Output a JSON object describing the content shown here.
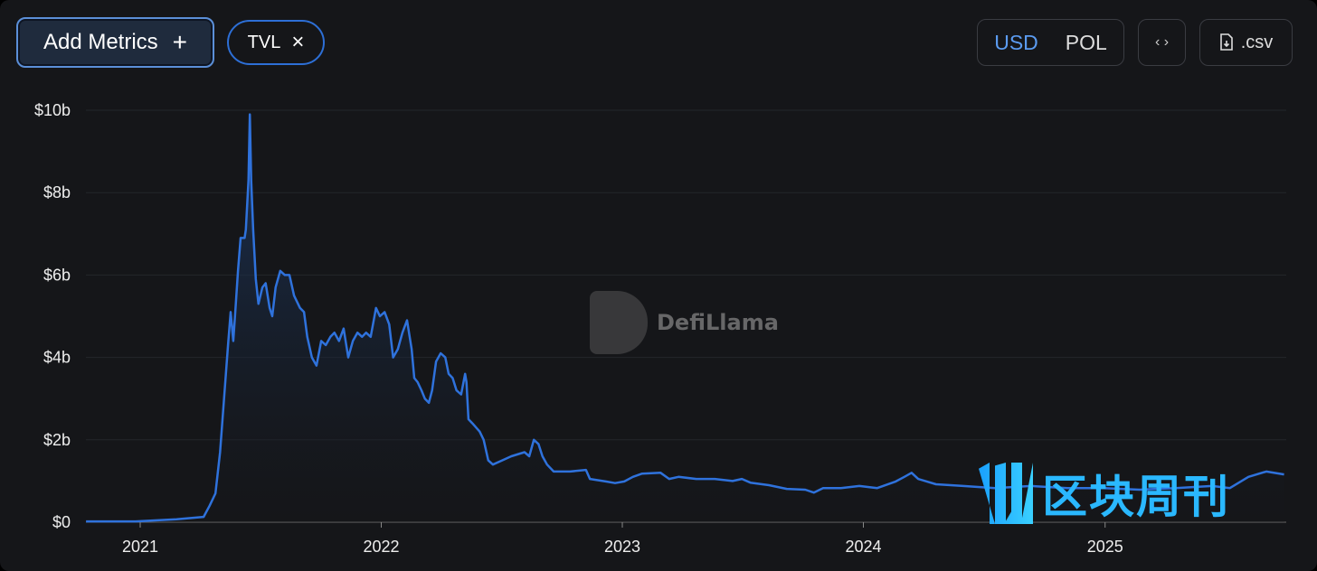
{
  "toolbar": {
    "add_metrics": "Add Metrics",
    "add_icon": "+",
    "tvl_chip": "TVL",
    "close_icon": "×",
    "currency": [
      "USD",
      "POL"
    ],
    "currency_selected": "USD",
    "embed_icon": "‹ ›",
    "csv_label": ".csv"
  },
  "watermarks": {
    "defillama": "DefiLlama",
    "overlay": "区块周刊"
  },
  "colors": {
    "line": "#2f72dc",
    "accent": "#5b9bf0",
    "background": "#151619"
  },
  "chart_data": {
    "type": "area",
    "title": "",
    "xlabel": "",
    "ylabel": "",
    "ylim": [
      0,
      10
    ],
    "y_ticks": [
      "$0",
      "$2b",
      "$4b",
      "$6b",
      "$8b",
      "$10b"
    ],
    "x_ticks": [
      "2021",
      "2022",
      "2023",
      "2024",
      "2025"
    ],
    "grid": "horizontal",
    "series": [
      {
        "unit": "USD billions",
        "points": [
          [
            "2020-10-11",
            0.02
          ],
          [
            "2020-12-25",
            0.02
          ],
          [
            "2021-02-25",
            0.07
          ],
          [
            "2021-04-07",
            0.13
          ],
          [
            "2021-04-16",
            0.4
          ],
          [
            "2021-04-25",
            0.7
          ],
          [
            "2021-05-02",
            1.7
          ],
          [
            "2021-05-08",
            3.0
          ],
          [
            "2021-05-14",
            4.3
          ],
          [
            "2021-05-18",
            5.1
          ],
          [
            "2021-05-22",
            4.4
          ],
          [
            "2021-05-25",
            5.1
          ],
          [
            "2021-05-29",
            6.1
          ],
          [
            "2021-06-02",
            6.9
          ],
          [
            "2021-06-08",
            6.9
          ],
          [
            "2021-06-10",
            7.1
          ],
          [
            "2021-06-14",
            8.3
          ],
          [
            "2021-06-16",
            9.9
          ],
          [
            "2021-06-18",
            8.3
          ],
          [
            "2021-06-21",
            7.1
          ],
          [
            "2021-06-25",
            5.9
          ],
          [
            "2021-06-29",
            5.3
          ],
          [
            "2021-07-05",
            5.7
          ],
          [
            "2021-07-10",
            5.8
          ],
          [
            "2021-07-16",
            5.2
          ],
          [
            "2021-07-20",
            5.0
          ],
          [
            "2021-07-25",
            5.7
          ],
          [
            "2021-08-01",
            6.1
          ],
          [
            "2021-08-08",
            6.0
          ],
          [
            "2021-08-15",
            6.0
          ],
          [
            "2021-08-22",
            5.5
          ],
          [
            "2021-08-31",
            5.2
          ],
          [
            "2021-09-06",
            5.1
          ],
          [
            "2021-09-11",
            4.5
          ],
          [
            "2021-09-18",
            4.0
          ],
          [
            "2021-09-25",
            3.8
          ],
          [
            "2021-10-02",
            4.4
          ],
          [
            "2021-10-09",
            4.3
          ],
          [
            "2021-10-16",
            4.5
          ],
          [
            "2021-10-22",
            4.6
          ],
          [
            "2021-10-29",
            4.4
          ],
          [
            "2021-11-05",
            4.7
          ],
          [
            "2021-11-12",
            4.0
          ],
          [
            "2021-11-19",
            4.4
          ],
          [
            "2021-11-26",
            4.6
          ],
          [
            "2021-12-03",
            4.5
          ],
          [
            "2021-12-09",
            4.6
          ],
          [
            "2021-12-16",
            4.5
          ],
          [
            "2021-12-24",
            5.2
          ],
          [
            "2021-12-30",
            5.0
          ],
          [
            "2022-01-06",
            5.1
          ],
          [
            "2022-01-13",
            4.8
          ],
          [
            "2022-01-19",
            4.0
          ],
          [
            "2022-01-26",
            4.2
          ],
          [
            "2022-02-02",
            4.6
          ],
          [
            "2022-02-09",
            4.9
          ],
          [
            "2022-02-16",
            4.2
          ],
          [
            "2022-02-20",
            3.5
          ],
          [
            "2022-02-25",
            3.4
          ],
          [
            "2022-03-03",
            3.2
          ],
          [
            "2022-03-08",
            3.0
          ],
          [
            "2022-03-14",
            2.9
          ],
          [
            "2022-03-19",
            3.2
          ],
          [
            "2022-03-25",
            3.9
          ],
          [
            "2022-04-01",
            4.1
          ],
          [
            "2022-04-08",
            4.0
          ],
          [
            "2022-04-13",
            3.6
          ],
          [
            "2022-04-19",
            3.5
          ],
          [
            "2022-04-25",
            3.2
          ],
          [
            "2022-05-02",
            3.1
          ],
          [
            "2022-05-08",
            3.6
          ],
          [
            "2022-05-10",
            3.4
          ],
          [
            "2022-05-13",
            2.5
          ],
          [
            "2022-05-19",
            2.4
          ],
          [
            "2022-05-30",
            2.2
          ],
          [
            "2022-06-05",
            2.0
          ],
          [
            "2022-06-12",
            1.5
          ],
          [
            "2022-06-19",
            1.4
          ],
          [
            "2022-07-03",
            1.5
          ],
          [
            "2022-07-17",
            1.6
          ],
          [
            "2022-08-06",
            1.7
          ],
          [
            "2022-08-13",
            1.6
          ],
          [
            "2022-08-20",
            2.0
          ],
          [
            "2022-08-27",
            1.9
          ],
          [
            "2022-09-02",
            1.6
          ],
          [
            "2022-09-09",
            1.4
          ],
          [
            "2022-09-19",
            1.23
          ],
          [
            "2022-10-14",
            1.23
          ],
          [
            "2022-11-07",
            1.27
          ],
          [
            "2022-11-13",
            1.05
          ],
          [
            "2022-12-07",
            0.99
          ],
          [
            "2022-12-21",
            0.95
          ],
          [
            "2023-01-04",
            0.99
          ],
          [
            "2023-01-17",
            1.1
          ],
          [
            "2023-01-31",
            1.18
          ],
          [
            "2023-02-28",
            1.2
          ],
          [
            "2023-03-13",
            1.05
          ],
          [
            "2023-03-27",
            1.1
          ],
          [
            "2023-04-23",
            1.05
          ],
          [
            "2023-05-21",
            1.05
          ],
          [
            "2023-06-17",
            1.0
          ],
          [
            "2023-07-01",
            1.05
          ],
          [
            "2023-07-14",
            0.96
          ],
          [
            "2023-08-11",
            0.9
          ],
          [
            "2023-09-07",
            0.81
          ],
          [
            "2023-10-05",
            0.79
          ],
          [
            "2023-10-18",
            0.72
          ],
          [
            "2023-11-01",
            0.83
          ],
          [
            "2023-11-28",
            0.83
          ],
          [
            "2023-12-26",
            0.88
          ],
          [
            "2024-01-22",
            0.83
          ],
          [
            "2024-02-19",
            0.99
          ],
          [
            "2024-03-03",
            1.1
          ],
          [
            "2024-03-14",
            1.2
          ],
          [
            "2024-03-24",
            1.05
          ],
          [
            "2024-04-20",
            0.92
          ],
          [
            "2024-05-31",
            0.88
          ],
          [
            "2024-07-18",
            0.83
          ],
          [
            "2024-09-11",
            0.88
          ],
          [
            "2024-11-05",
            0.83
          ],
          [
            "2024-12-30",
            0.83
          ],
          [
            "2025-02-22",
            0.79
          ],
          [
            "2025-04-18",
            0.83
          ],
          [
            "2025-06-12",
            0.88
          ],
          [
            "2025-07-09",
            0.83
          ],
          [
            "2025-08-06",
            1.1
          ],
          [
            "2025-09-02",
            1.23
          ],
          [
            "2025-09-29",
            1.16
          ]
        ]
      }
    ]
  }
}
